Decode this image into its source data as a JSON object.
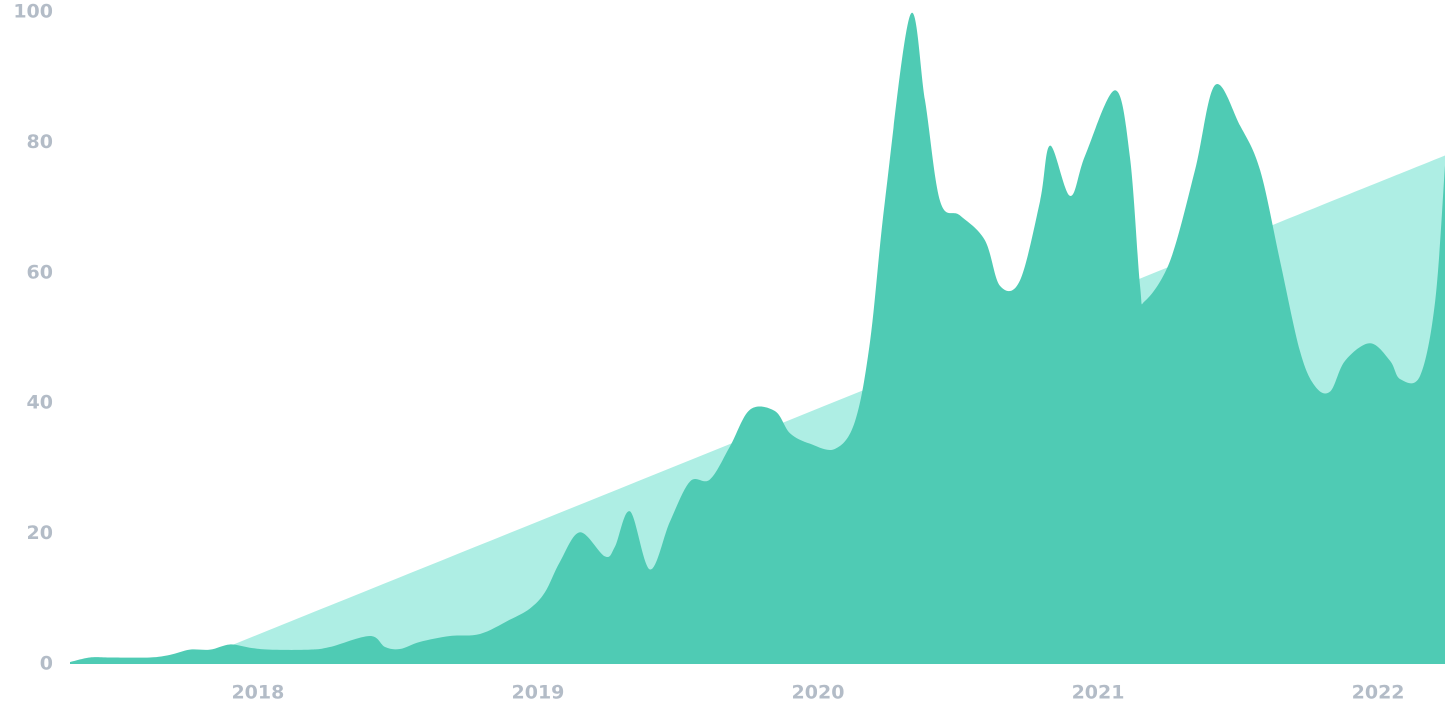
{
  "chart_data": {
    "type": "area",
    "xlim": [
      2017.329,
      2022.239
    ],
    "xticks": [
      2018,
      2019,
      2020,
      2021,
      2022
    ],
    "ylim": [
      0,
      100
    ],
    "yticks": [
      0,
      20,
      40,
      60,
      80,
      100
    ],
    "grid": false,
    "series": [
      {
        "color": "#aeeee4",
        "x": [
          2017.74,
          2022.239
        ],
        "values": [
          0,
          78
        ]
      },
      {
        "color": "#4fcbb4",
        "x": [
          2017.329,
          2017.4,
          2017.471,
          2017.614,
          2017.686,
          2017.757,
          2017.829,
          2017.9,
          2017.971,
          2018.043,
          2018.186,
          2018.257,
          2018.4,
          2018.454,
          2018.507,
          2018.579,
          2018.686,
          2018.793,
          2018.9,
          2018.971,
          2019.025,
          2019.079,
          2019.15,
          2019.239,
          2019.275,
          2019.329,
          2019.4,
          2019.471,
          2019.543,
          2019.614,
          2019.686,
          2019.757,
          2019.846,
          2019.9,
          2019.971,
          2020.061,
          2020.132,
          2020.186,
          2020.239,
          2020.329,
          2020.382,
          2020.436,
          2020.507,
          2020.596,
          2020.65,
          2020.721,
          2020.793,
          2020.829,
          2020.9,
          2020.954,
          2021.061,
          2021.114,
          2021.15,
          2021.168,
          2021.257,
          2021.346,
          2021.418,
          2021.507,
          2021.579,
          2021.65,
          2021.721,
          2021.775,
          2021.829,
          2021.882,
          2021.971,
          2022.043,
          2022.079,
          2022.15,
          2022.204,
          2022.239
        ],
        "values": [
          0.3,
          1,
          1,
          1,
          1.4,
          2.2,
          2.2,
          3,
          2.5,
          2.2,
          2.2,
          2.6,
          4.3,
          2.6,
          2.3,
          3.4,
          4.3,
          4.6,
          6.8,
          8.5,
          11,
          15.7,
          20.2,
          16.5,
          18,
          23.4,
          14.5,
          21.8,
          28,
          28.3,
          33.4,
          39,
          38.8,
          35.4,
          33.8,
          33,
          37.2,
          49.5,
          71,
          99.5,
          86.5,
          71,
          68.8,
          65,
          58,
          58.8,
          71,
          79.5,
          71.8,
          78,
          88,
          77.7,
          58,
          55.7,
          61.8,
          75.7,
          88.8,
          82.6,
          75.7,
          61.8,
          48,
          42.6,
          41.8,
          46.5,
          49.2,
          46.5,
          43.7,
          44.2,
          55.7,
          76.5
        ]
      }
    ]
  }
}
